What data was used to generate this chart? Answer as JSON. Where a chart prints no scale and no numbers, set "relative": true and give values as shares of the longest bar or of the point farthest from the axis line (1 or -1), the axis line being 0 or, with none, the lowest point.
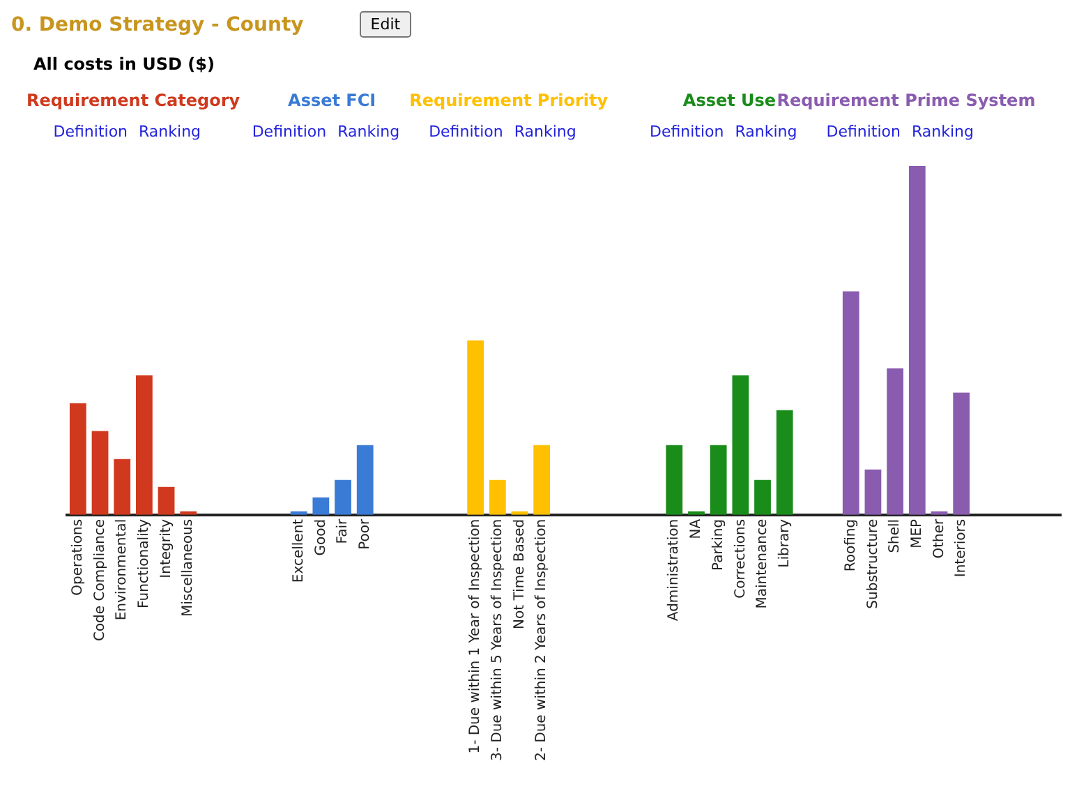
{
  "chart_data": {
    "type": "bar",
    "title": "0. Demo Strategy - County",
    "subtitle": "All costs in USD ($)",
    "relative": true,
    "grid": false,
    "legend": false,
    "annotations": [
      "Edit",
      "Definition",
      "Ranking",
      "Definition",
      "Ranking",
      "Definition",
      "Ranking",
      "Definition",
      "Ranking",
      "Definition",
      "Ranking"
    ],
    "categories": [
      "Operations",
      "Code Compliance",
      "Environmental",
      "Functionality",
      "Integrity",
      "Miscellaneous",
      null,
      null,
      null,
      null,
      "Excellent",
      "Good",
      "Fair",
      "Poor",
      null,
      null,
      null,
      null,
      "1- Due within 1 Year of Inspection",
      "3- Due within 5 Years of Inspection",
      "Not Time Based",
      "2- Due within 2 Years of Inspection",
      null,
      null,
      null,
      null,
      null,
      "Administration",
      "NA",
      "Parking",
      "Corrections",
      "Maintenance",
      "Library",
      null,
      null,
      "Roofing",
      "Substructure",
      "Shell",
      "MEP",
      "Other",
      "Interiors",
      null,
      null,
      null,
      null
    ],
    "series": [
      {
        "name": "Requirement Category",
        "color": "#d0391e",
        "values": [
          0.32,
          0.24,
          0.16,
          0.4,
          0.08,
          0.01,
          null,
          null,
          null,
          null,
          null,
          null,
          null,
          null,
          null,
          null,
          null,
          null,
          null,
          null,
          null,
          null,
          null,
          null,
          null,
          null,
          null,
          null,
          null,
          null,
          null,
          null,
          null,
          null,
          null,
          null,
          null,
          null,
          null,
          null,
          null,
          null,
          null,
          null,
          null
        ]
      },
      {
        "name": "Asset FCI",
        "color": "#3a7bd5",
        "values": [
          null,
          null,
          null,
          null,
          null,
          null,
          null,
          null,
          null,
          null,
          0.01,
          0.05,
          0.1,
          0.2,
          null,
          null,
          null,
          null,
          null,
          null,
          null,
          null,
          null,
          null,
          null,
          null,
          null,
          null,
          null,
          null,
          null,
          null,
          null,
          null,
          null,
          null,
          null,
          null,
          null,
          null,
          null,
          null,
          null,
          null,
          null
        ]
      },
      {
        "name": "Requirement Priority",
        "color": "#ffc000",
        "values": [
          null,
          null,
          null,
          null,
          null,
          null,
          null,
          null,
          null,
          null,
          null,
          null,
          null,
          null,
          null,
          null,
          null,
          null,
          0.5,
          0.1,
          0.01,
          0.2,
          null,
          null,
          null,
          null,
          null,
          null,
          null,
          null,
          null,
          null,
          null,
          null,
          null,
          null,
          null,
          null,
          null,
          null,
          null,
          null,
          null,
          null,
          null
        ]
      },
      {
        "name": "Asset Use",
        "color": "#1a8c1a",
        "values": [
          null,
          null,
          null,
          null,
          null,
          null,
          null,
          null,
          null,
          null,
          null,
          null,
          null,
          null,
          null,
          null,
          null,
          null,
          null,
          null,
          null,
          null,
          null,
          null,
          null,
          null,
          null,
          0.2,
          0.01,
          0.2,
          0.4,
          0.1,
          0.3,
          null,
          null,
          null,
          null,
          null,
          null,
          null,
          null,
          null,
          null,
          null,
          null
        ]
      },
      {
        "name": "Requirement Prime System",
        "color": "#8a5cb0",
        "values": [
          null,
          null,
          null,
          null,
          null,
          null,
          null,
          null,
          null,
          null,
          null,
          null,
          null,
          null,
          null,
          null,
          null,
          null,
          null,
          null,
          null,
          null,
          null,
          null,
          null,
          null,
          null,
          null,
          null,
          null,
          null,
          null,
          null,
          null,
          null,
          0.64,
          0.13,
          0.42,
          1,
          0.01,
          0.35,
          null,
          null,
          null,
          null
        ]
      }
    ]
  }
}
